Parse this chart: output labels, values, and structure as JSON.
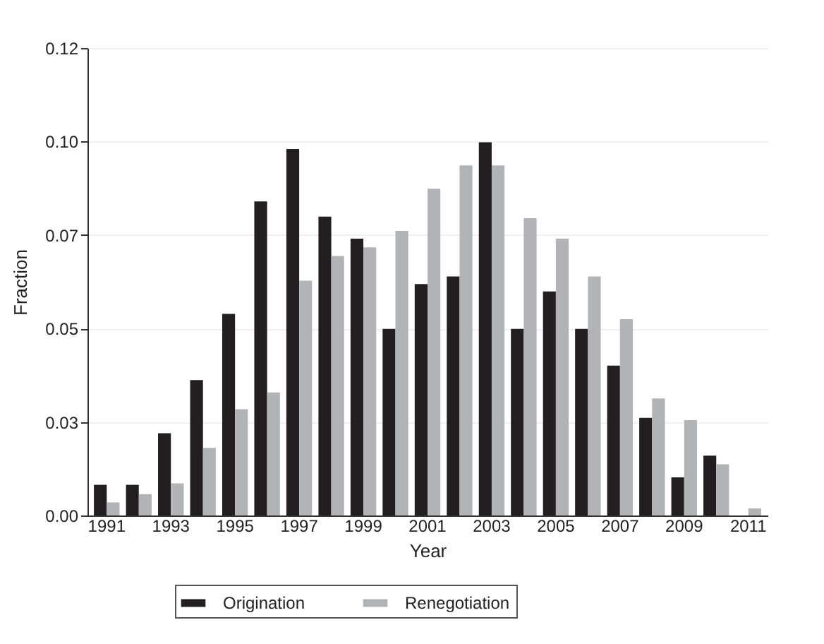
{
  "chart_data": {
    "type": "bar",
    "xlabel": "Year",
    "ylabel": "Fraction",
    "categories": [
      "1991",
      null,
      "1993",
      null,
      "1995",
      null,
      "1997",
      null,
      "1999",
      null,
      "2001",
      null,
      "2003",
      null,
      "2005",
      null,
      "2007",
      null,
      "2009",
      null,
      "2011"
    ],
    "series": [
      {
        "name": "Origination",
        "color": "#231f20",
        "values": [
          0.0082,
          0.0082,
          0.022,
          0.0362,
          0.0539,
          0.084,
          0.098,
          0.0799,
          0.074,
          0.0499,
          0.0619,
          0.0639,
          0.0998,
          0.0499,
          0.0599,
          0.0499,
          0.0401,
          0.0261,
          0.0102,
          0.016,
          0
        ]
      },
      {
        "name": "Renegotiation",
        "color": "#b2b3b6",
        "values": [
          0.0035,
          0.0057,
          0.0086,
          0.0181,
          0.0284,
          0.0329,
          0.0628,
          0.0694,
          0.0717,
          0.0761,
          0.0874,
          0.0936,
          0.0936,
          0.0795,
          0.074,
          0.0639,
          0.0525,
          0.0313,
          0.0255,
          0.0137,
          0.0019
        ]
      }
    ],
    "ylim": [
      0,
      0.125
    ],
    "yticks": [
      {
        "value": 0,
        "label": "0.00"
      },
      {
        "value": 0.025,
        "label": "0.03"
      },
      {
        "value": 0.05,
        "label": "0.05"
      },
      {
        "value": 0.075,
        "label": "0.07"
      },
      {
        "value": 0.1,
        "label": "0.10"
      },
      {
        "value": 0.125,
        "label": "0.12"
      }
    ],
    "grid": "y",
    "legend": "bottom"
  }
}
